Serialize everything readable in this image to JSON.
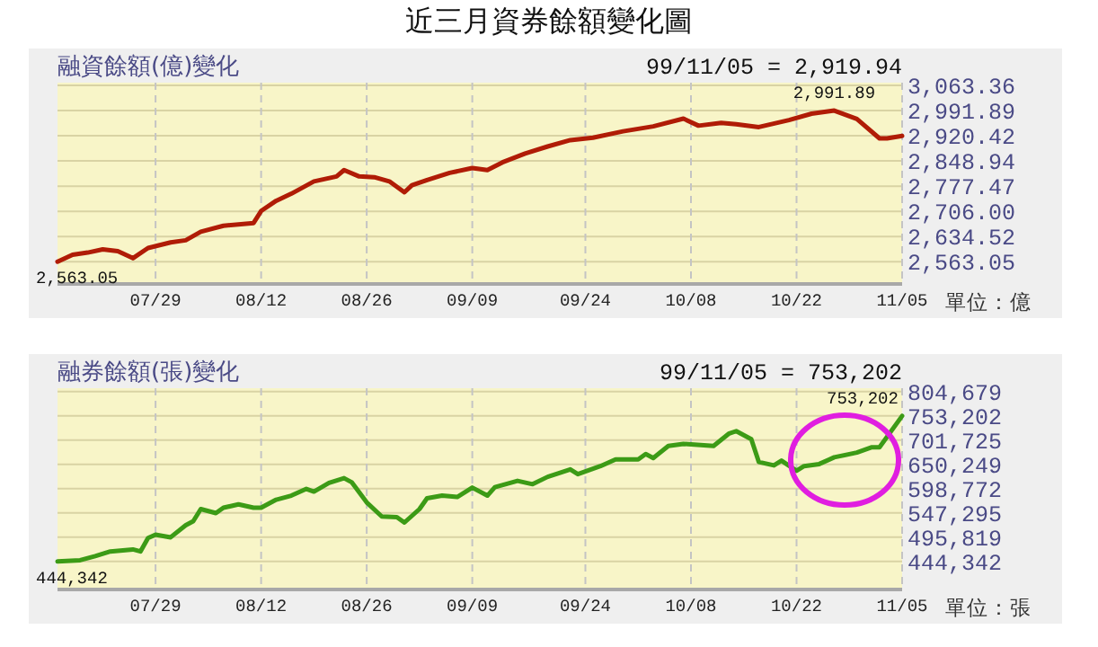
{
  "chart_data": [
    {
      "type": "line",
      "title": "近三月資券餘額變化圖",
      "subtitle": "融資餘額(億)變化",
      "x": [
        "--07-16",
        "--07-18",
        "--07-20",
        "--07-22",
        "--07-24",
        "--07-26",
        "--07-28",
        "--07-31",
        "--08-02",
        "--08-04",
        "--08-07",
        "--08-11",
        "--08-12",
        "--08-14",
        "--08-16",
        "--08-19",
        "--08-22",
        "--08-23",
        "--08-25",
        "--08-27",
        "--08-29",
        "--08-31",
        "--09-01",
        "--09-03",
        "--09-06",
        "--09-09",
        "--09-11",
        "--09-13",
        "--09-16",
        "--09-19",
        "--09-22",
        "--09-25",
        "--09-29",
        "--10-03",
        "--10-07",
        "--10-09",
        "--10-12",
        "--10-14",
        "--10-17",
        "--10-21",
        "--10-24",
        "--10-27",
        "--10-30",
        "--11-02",
        "--11-03",
        "--11-05"
      ],
      "series": [
        {
          "color": "#b01c06",
          "values": [
            2563.05,
            2583,
            2589,
            2598,
            2593,
            2573,
            2602,
            2618,
            2624,
            2648,
            2665,
            2673,
            2707,
            2736,
            2756,
            2791,
            2805,
            2823,
            2805,
            2803,
            2791,
            2760,
            2780,
            2795,
            2815,
            2829,
            2823,
            2845,
            2870,
            2890,
            2908,
            2915,
            2933,
            2947,
            2969,
            2949,
            2957,
            2953,
            2945,
            2965,
            2983,
            2991.89,
            2968,
            2913,
            2913,
            2919.94
          ]
        }
      ],
      "xlim": [
        "--07-16",
        "--11-05"
      ],
      "xticks": [
        {
          "value": "--07-29",
          "label": "07/29"
        },
        {
          "value": "--08-12",
          "label": "08/12"
        },
        {
          "value": "--08-26",
          "label": "08/26"
        },
        {
          "value": "--09-09",
          "label": "09/09"
        },
        {
          "value": "--09-24",
          "label": "09/24"
        },
        {
          "value": "--10-08",
          "label": "10/08"
        },
        {
          "value": "--10-22",
          "label": "10/22"
        },
        {
          "value": "--11-05",
          "label": "11/05"
        }
      ],
      "ylim": [
        2500,
        3071
      ],
      "yticks": [
        {
          "value": 2563.05,
          "label": "2,563.05"
        },
        {
          "value": 2634.52,
          "label": "2,634.52"
        },
        {
          "value": 2706.0,
          "label": "2,706.00"
        },
        {
          "value": 2777.47,
          "label": "2,777.47"
        },
        {
          "value": 2848.94,
          "label": "2,848.94"
        },
        {
          "value": 2920.42,
          "label": "2,920.42"
        },
        {
          "value": 2991.89,
          "label": "2,991.89"
        },
        {
          "value": 3063.36,
          "label": "3,063.36"
        }
      ],
      "grid": true,
      "annotations": [
        "99/11/05 = 2,919.94",
        {
          "text": "2,991.89",
          "x": "--10-27",
          "y": 2991.89
        },
        {
          "text": "2,563.05",
          "x": "--07-16",
          "y": 2563.05
        },
        "單位：億"
      ]
    },
    {
      "type": "line",
      "subtitle": "融券餘額(張)變化",
      "x": [
        "--07-16",
        "--07-19",
        "--07-21",
        "--07-23",
        "--07-26",
        "--07-27",
        "--07-28",
        "--07-29",
        "--07-31",
        "--08-02",
        "--08-03",
        "--08-04",
        "--08-06",
        "--08-07",
        "--08-09",
        "--08-11",
        "--08-12",
        "--08-14",
        "--08-16",
        "--08-18",
        "--08-19",
        "--08-21",
        "--08-23",
        "--08-24",
        "--08-26",
        "--08-28",
        "--08-30",
        "--08-31",
        "--09-02",
        "--09-03",
        "--09-05",
        "--09-07",
        "--09-09",
        "--09-11",
        "--09-12",
        "--09-15",
        "--09-17",
        "--09-19",
        "--09-22",
        "--09-23",
        "--09-26",
        "--09-28",
        "--10-01",
        "--10-02",
        "--10-03",
        "--10-05",
        "--10-07",
        "--10-11",
        "--10-13",
        "--10-14",
        "--10-16",
        "--10-17",
        "--10-19",
        "--10-20",
        "--10-22",
        "--10-23",
        "--10-25",
        "--10-27",
        "--10-30",
        "--11-01",
        "--11-02",
        "--11-05"
      ],
      "series": [
        {
          "color": "#3c9b16",
          "values": [
            444342,
            447200,
            455750,
            465700,
            470000,
            465700,
            494250,
            501400,
            495700,
            521350,
            529900,
            555600,
            547000,
            558400,
            565600,
            558400,
            558400,
            575500,
            584100,
            598350,
            592650,
            611200,
            621200,
            612600,
            569800,
            539900,
            538500,
            527000,
            555600,
            578400,
            584100,
            581200,
            601200,
            584100,
            602000,
            615500,
            608300,
            624000,
            639700,
            629700,
            646800,
            661100,
            661100,
            672500,
            663900,
            689600,
            693900,
            689600,
            715300,
            721000,
            703900,
            655400,
            648300,
            658300,
            636800,
            646800,
            651100,
            665400,
            675400,
            686800,
            686800,
            753202
          ]
        }
      ],
      "xlim": [
        "--07-16",
        "--11-05"
      ],
      "xticks": [
        {
          "value": "--07-29",
          "label": "07/29"
        },
        {
          "value": "--08-12",
          "label": "08/12"
        },
        {
          "value": "--08-26",
          "label": "08/26"
        },
        {
          "value": "--09-09",
          "label": "09/09"
        },
        {
          "value": "--09-24",
          "label": "09/24"
        },
        {
          "value": "--10-08",
          "label": "10/08"
        },
        {
          "value": "--10-22",
          "label": "10/22"
        },
        {
          "value": "--11-05",
          "label": "11/05"
        }
      ],
      "ylim": [
        385000,
        812000
      ],
      "yticks": [
        {
          "value": 444342,
          "label": "444,342"
        },
        {
          "value": 495819,
          "label": "495,819"
        },
        {
          "value": 547295,
          "label": "547,295"
        },
        {
          "value": 598772,
          "label": "598,772"
        },
        {
          "value": 650249,
          "label": "650,249"
        },
        {
          "value": 701725,
          "label": "701,725"
        },
        {
          "value": 753202,
          "label": "753,202"
        },
        {
          "value": 804679,
          "label": "804,679"
        }
      ],
      "grid": true,
      "annotations": [
        "99/11/05 = 753,202",
        {
          "text": "753,202",
          "x": "--11-05",
          "y": 753202
        },
        {
          "text": "444,342",
          "x": "--07-16",
          "y": 444342
        },
        "單位：張"
      ]
    }
  ]
}
